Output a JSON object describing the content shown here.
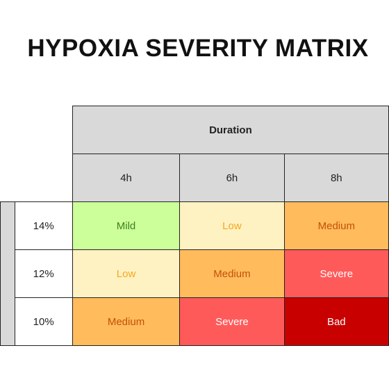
{
  "header": {
    "title": "HYPOXIA SEVERITY MATRIX"
  },
  "table": {
    "column_group": "Duration",
    "columns": [
      "4h",
      "6h",
      "8h"
    ],
    "rows": [
      {
        "label": "14%",
        "cells": [
          "Mild",
          "Low",
          "Medium"
        ]
      },
      {
        "label": "12%",
        "cells": [
          "Low",
          "Medium",
          "Severe"
        ]
      },
      {
        "label": "10%",
        "cells": [
          "Medium",
          "Severe",
          "Bad"
        ]
      }
    ]
  }
}
